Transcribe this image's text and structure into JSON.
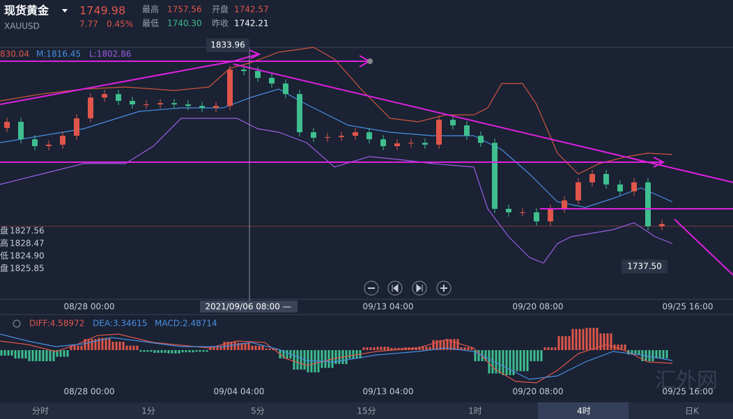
{
  "header": {
    "name": "现货黄金",
    "price": "1749.98",
    "symbol": "XAUUSD",
    "change": "7.77",
    "change_pct": "0.45%",
    "stats": [
      [
        "最高",
        "1757.56"
      ],
      [
        "开盘",
        "1742.57"
      ],
      [
        "最低",
        "1740.30"
      ],
      [
        "昨收",
        "1742.21"
      ]
    ]
  },
  "price_chart": {
    "indicators": [
      "830.04",
      "M:1816.45",
      "L:1802.86"
    ],
    "callouts": [
      "1833.96",
      "1737.50"
    ],
    "side_labels": [
      [
        "盘",
        "1827.56"
      ],
      [
        "高",
        "1828.47"
      ],
      [
        "低",
        "1824.90"
      ],
      [
        "盘",
        "1825.85"
      ]
    ],
    "ylim": [
      1705.6,
      1841.5
    ],
    "open": [
      1798.0,
      1801.3,
      1791.9,
      1788.2,
      1789.0,
      1793.8,
      1803.2,
      1814.4,
      1816.3,
      1812.6,
      1810.7,
      1810.7,
      1811.4,
      1810.7,
      1809.9,
      1808.8,
      1809.9,
      1829.5,
      1828.7,
      1825.0,
      1822.0,
      1816.3,
      1795.7,
      1792.7,
      1793.1,
      1793.8,
      1795.7,
      1791.9,
      1788.2,
      1789.7,
      1790.0,
      1789.0,
      1802.4,
      1799.4,
      1793.8,
      1790.0,
      1754.4,
      1752.5,
      1752.5,
      1747.6,
      1754.4,
      1758.9,
      1768.7,
      1773.2,
      1767.5,
      1763.8,
      1768.7,
      1745.0
    ],
    "close": [
      1801.3,
      1791.9,
      1788.2,
      1789.0,
      1793.8,
      1803.2,
      1814.4,
      1816.3,
      1812.6,
      1810.7,
      1810.7,
      1811.4,
      1810.7,
      1809.9,
      1808.8,
      1809.9,
      1829.5,
      1828.7,
      1825.0,
      1822.0,
      1816.3,
      1795.7,
      1792.7,
      1793.1,
      1793.8,
      1795.7,
      1791.9,
      1788.2,
      1789.7,
      1790.0,
      1789.0,
      1802.4,
      1799.4,
      1793.8,
      1790.0,
      1754.4,
      1752.5,
      1752.5,
      1747.6,
      1754.4,
      1758.9,
      1768.7,
      1773.2,
      1767.5,
      1763.8,
      1768.7,
      1745.0,
      1746.2
    ],
    "x_labels": [
      "08/28 00:00",
      "2021/09/06 08:00 —",
      "09/13 04:00",
      "09/20 08:00",
      "09/25 16:00"
    ]
  },
  "macd_chart": {
    "indicators": [
      "DIFF:4.58972",
      "DEA:3.34615",
      "MACD:2.48714"
    ],
    "ylim": [
      -6,
      6
    ],
    "histogram": [
      -1.0,
      -1.5,
      -2.0,
      -2.0,
      -1.2,
      0.8,
      2.0,
      2.2,
      1.5,
      0.8,
      -0.3,
      -0.5,
      -0.6,
      -0.4,
      -0.3,
      0.6,
      1.5,
      1.3,
      0.8,
      0.3,
      -1.5,
      -3.5,
      -4.0,
      -3.2,
      -2.5,
      -1.5,
      0.5,
      0.6,
      0.4,
      0.5,
      0.6,
      1.8,
      2.0,
      0.5,
      -2.0,
      -4.2,
      -4.5,
      -3.8,
      -2.0,
      0.5,
      2.5,
      3.8,
      4.0,
      3.0,
      1.0,
      -0.8,
      -2.0,
      -1.5
    ],
    "x_labels": [
      "08/28 00:00",
      "09/04 04:00",
      "09/13 04:00",
      "09/20 08:00",
      "09/25 16:00"
    ]
  },
  "tabs": [
    "分时",
    "1分",
    "5分",
    "15分",
    "1时",
    "4时",
    "日K"
  ],
  "watermark": "汇外网"
}
